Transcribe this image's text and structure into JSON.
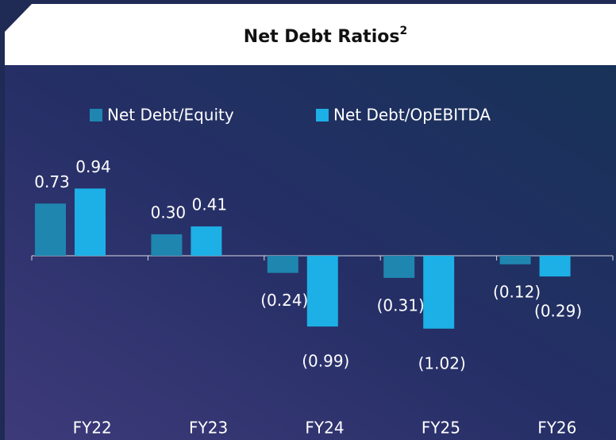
{
  "chart_data": {
    "type": "bar",
    "title": "Net Debt Ratios",
    "title_superscript": "2",
    "categories": [
      "FY22",
      "FY23",
      "FY24",
      "FY25",
      "FY26"
    ],
    "series": [
      {
        "name": "Net Debt/Equity",
        "color": "#1f86b0",
        "values": [
          0.73,
          0.3,
          -0.24,
          -0.31,
          -0.12
        ],
        "value_labels": [
          "0.73",
          "0.30",
          "(0.24)",
          "(0.31)",
          "(0.12)"
        ]
      },
      {
        "name": "Net Debt/OpEBITDA",
        "color": "#1cb0e6",
        "values": [
          0.94,
          0.41,
          -0.99,
          -1.02,
          -0.29
        ],
        "value_labels": [
          "0.94",
          "0.41",
          "(0.99)",
          "(1.02)",
          "(0.29)"
        ]
      }
    ],
    "legend": "top"
  }
}
